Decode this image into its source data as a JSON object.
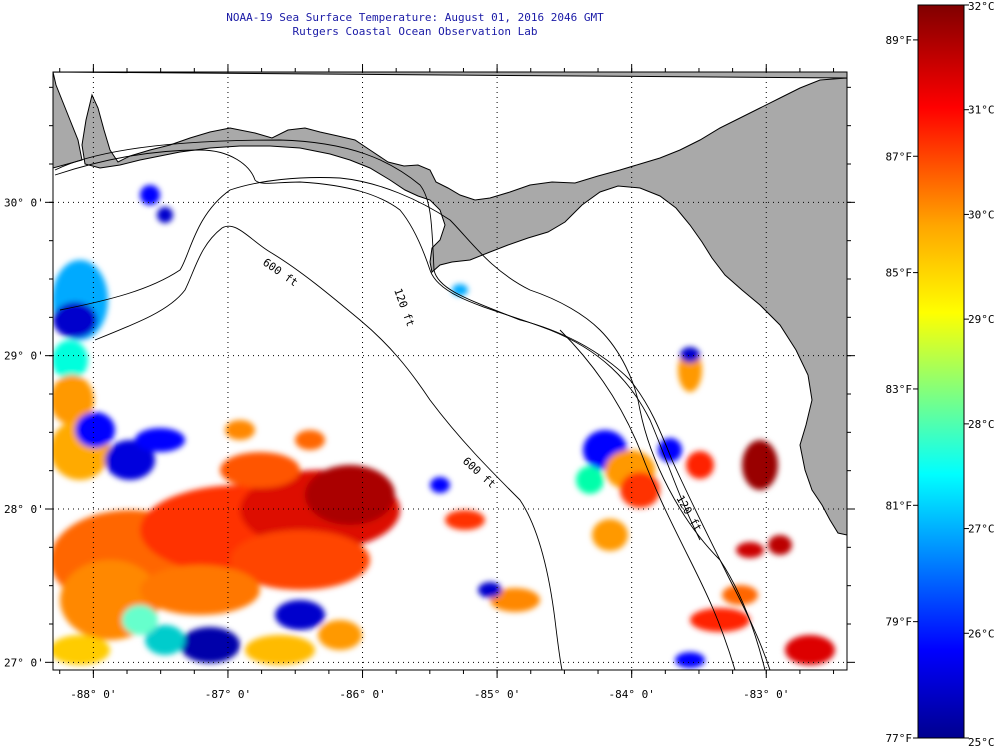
{
  "header": {
    "title": "NOAA-19 Sea Surface Temperature:  August 01, 2016 2046 GMT",
    "subtitle": "Rutgers Coastal Ocean Observation Lab"
  },
  "map": {
    "lon_range": [
      -88.3,
      -82.4
    ],
    "lat_range": [
      26.95,
      30.85
    ],
    "lon_ticks": [
      {
        "value": -88,
        "label": "-88° 0'"
      },
      {
        "value": -87,
        "label": "-87° 0'"
      },
      {
        "value": -86,
        "label": "-86° 0'"
      },
      {
        "value": -85,
        "label": "-85° 0'"
      },
      {
        "value": -84,
        "label": "-84° 0'"
      },
      {
        "value": -83,
        "label": "-83° 0'"
      }
    ],
    "lat_ticks": [
      {
        "value": 30,
        "label": "30° 0'"
      },
      {
        "value": 29,
        "label": "29° 0'"
      },
      {
        "value": 28,
        "label": "28° 0'"
      },
      {
        "value": 27,
        "label": "27° 0'"
      }
    ],
    "contour_labels": {
      "c120": "120 ft",
      "c600a": "600 ft",
      "c600b": "600 ft",
      "c120b": "120 ft"
    },
    "colors": {
      "land": "#a9a9a9",
      "water": "#ffffff",
      "grid": "#000000"
    }
  },
  "colorbar": {
    "min_c": 25,
    "max_c": 32,
    "celsius_labels": [
      "32°C",
      "31°C",
      "30°C",
      "29°C",
      "28°C",
      "27°C",
      "26°C",
      "25°C"
    ],
    "fahrenheit_labels": [
      "89°F",
      "87°F",
      "85°F",
      "83°F",
      "81°F",
      "79°F",
      "77°F"
    ],
    "fahrenheit_values": [
      89,
      87,
      85,
      83,
      81,
      79,
      77
    ]
  }
}
